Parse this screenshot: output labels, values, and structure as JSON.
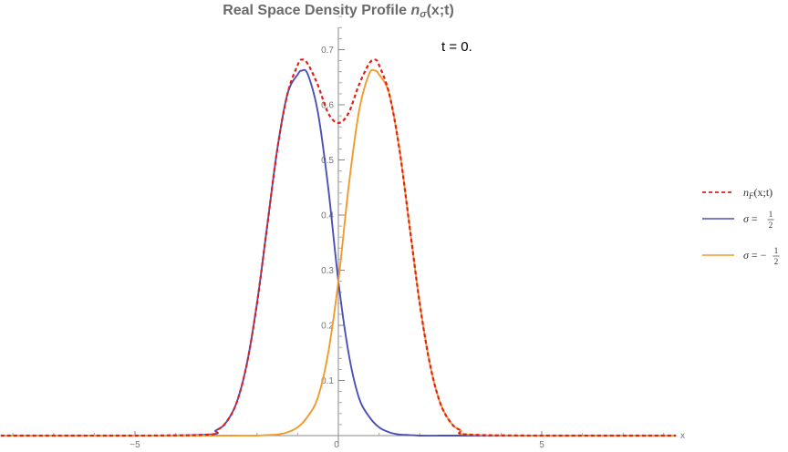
{
  "chart_data": {
    "type": "line",
    "title": "Real Space Density Profile ",
    "title_symbol": "n",
    "title_subscript": "σ",
    "title_args": "(x;t)",
    "annotation": "t = 0.",
    "xlabel": "x",
    "ylabel": "",
    "xlim": [
      -8.3,
      8.3
    ],
    "ylim": [
      0,
      0.76
    ],
    "x_ticks": [
      -5,
      0,
      5
    ],
    "y_ticks": [
      0.1,
      0.2,
      0.3,
      0.4,
      0.5,
      0.6,
      0.7
    ],
    "grid": false,
    "legend_position": "right",
    "series": [
      {
        "name": "n_F(x;t)",
        "legend_label": {
          "italic": "n",
          "sub": "F",
          "rest": "(x;t)"
        },
        "color": "#e0201c",
        "dash": true,
        "x": [
          -8.3,
          -3.5,
          -3.0,
          -2.75,
          -2.5,
          -2.25,
          -2.0,
          -1.75,
          -1.5,
          -1.25,
          -1.0,
          -0.9,
          -0.75,
          -0.5,
          -0.25,
          0.0,
          0.25,
          0.5,
          0.75,
          0.9,
          1.0,
          1.25,
          1.5,
          1.75,
          2.0,
          2.25,
          2.5,
          2.75,
          3.0,
          3.5,
          8.3
        ],
        "y": [
          0,
          0.001,
          0.01,
          0.025,
          0.06,
          0.13,
          0.24,
          0.38,
          0.52,
          0.62,
          0.672,
          0.682,
          0.674,
          0.635,
          0.585,
          0.567,
          0.585,
          0.635,
          0.674,
          0.682,
          0.672,
          0.62,
          0.52,
          0.38,
          0.24,
          0.13,
          0.06,
          0.025,
          0.01,
          0.001,
          0
        ]
      },
      {
        "name": "σ = 1/2",
        "legend_label": {
          "prefix": "σ = ",
          "neg": false,
          "num": "1",
          "den": "2"
        },
        "color": "#4b50b8",
        "dash": false,
        "x": [
          -8.3,
          -3.5,
          -3.0,
          -2.75,
          -2.5,
          -2.25,
          -2.0,
          -1.75,
          -1.5,
          -1.25,
          -1.0,
          -0.9,
          -0.75,
          -0.5,
          -0.25,
          0.0,
          0.25,
          0.5,
          0.75,
          1.0,
          1.25,
          1.5,
          1.75,
          2.0,
          2.5,
          3.0,
          8.3
        ],
        "y": [
          0,
          0.001,
          0.01,
          0.025,
          0.06,
          0.13,
          0.24,
          0.38,
          0.52,
          0.62,
          0.655,
          0.662,
          0.655,
          0.585,
          0.45,
          0.28,
          0.15,
          0.07,
          0.035,
          0.015,
          0.006,
          0.002,
          0.001,
          0,
          0,
          0,
          0
        ]
      },
      {
        "name": "σ = -1/2",
        "legend_label": {
          "prefix": "σ = ",
          "neg": true,
          "num": "1",
          "den": "2"
        },
        "color": "#f29a2e",
        "dash": false,
        "x": [
          -8.3,
          -3.0,
          -2.5,
          -2.0,
          -1.75,
          -1.5,
          -1.25,
          -1.0,
          -0.75,
          -0.5,
          -0.25,
          0.0,
          0.25,
          0.5,
          0.75,
          0.9,
          1.0,
          1.25,
          1.5,
          1.75,
          2.0,
          2.25,
          2.5,
          2.75,
          3.0,
          3.5,
          8.3
        ],
        "y": [
          0,
          0,
          0,
          0,
          0.001,
          0.002,
          0.006,
          0.015,
          0.035,
          0.07,
          0.15,
          0.28,
          0.45,
          0.585,
          0.655,
          0.662,
          0.655,
          0.62,
          0.52,
          0.38,
          0.24,
          0.13,
          0.06,
          0.025,
          0.01,
          0.001,
          0
        ]
      }
    ]
  }
}
